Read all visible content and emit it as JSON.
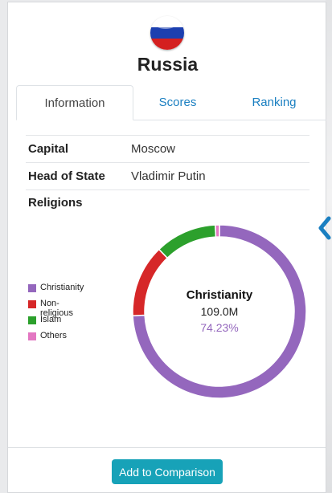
{
  "country": {
    "name": "Russia"
  },
  "tabs": [
    {
      "label": "Information",
      "active": true
    },
    {
      "label": "Scores",
      "active": false
    },
    {
      "label": "Ranking",
      "active": false
    }
  ],
  "info": {
    "rows": [
      {
        "key": "Capital",
        "value": "Moscow"
      },
      {
        "key": "Head of State",
        "value": "Vladimir Putin"
      }
    ],
    "religions_label": "Religions"
  },
  "chart_data": {
    "type": "pie",
    "style": "donut",
    "categories": [
      "Christianity",
      "Non-religious",
      "Islam",
      "Others"
    ],
    "values": [
      74.23,
      13.5,
      11.5,
      0.77
    ],
    "colors": [
      "#9467bd",
      "#d62728",
      "#2ca02c",
      "#e377c2"
    ],
    "legend": "left",
    "highlight": {
      "category": "Christianity",
      "value": "109.0M",
      "percent": "74.23%"
    }
  },
  "footer": {
    "button_label": "Add to Comparison"
  },
  "icons": {
    "flag": "russia-flag-icon",
    "collapse": "chevron-left-icon"
  }
}
